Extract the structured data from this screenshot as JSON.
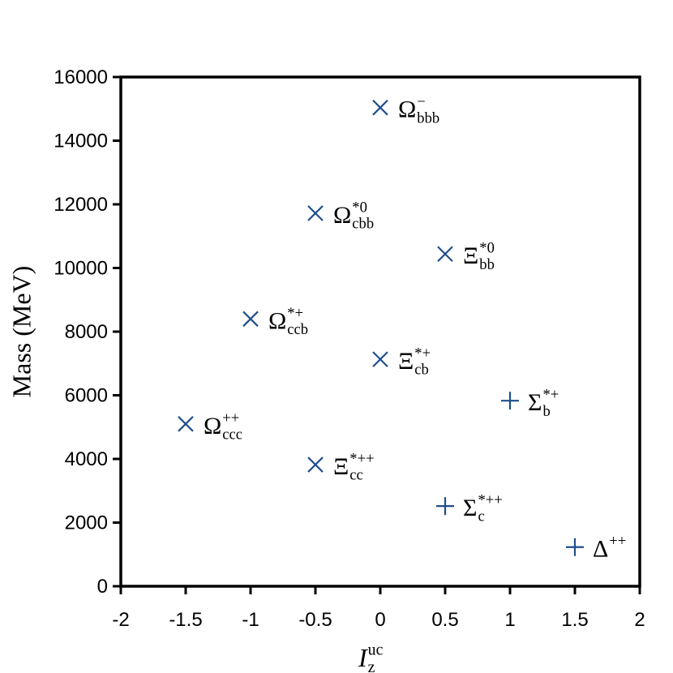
{
  "chart_data": {
    "type": "scatter",
    "xlabel": {
      "text": "I",
      "sub": "z",
      "sup": "uc"
    },
    "ylabel": "Mass (MeV)",
    "xlim": [
      -2,
      2
    ],
    "xticks": [
      -2,
      -1.5,
      -1,
      -0.5,
      0,
      0.5,
      1,
      1.5,
      2
    ],
    "ylim": [
      0,
      16000
    ],
    "yticks": [
      0,
      2000,
      4000,
      6000,
      8000,
      10000,
      12000,
      14000,
      16000
    ],
    "grid": false,
    "series": [
      {
        "marker": "x",
        "color": "#1f4e8c",
        "x": [
          0,
          -0.5,
          0.5,
          -1,
          0,
          -1.5,
          -0.5
        ],
        "values": [
          15040,
          11720,
          10440,
          8400,
          7130,
          5100,
          3820
        ],
        "labels": [
          {
            "symbol": "Ω",
            "sub": "bbb",
            "sup": "−"
          },
          {
            "symbol": "Ω",
            "sub": "cbb",
            "sup": "*0"
          },
          {
            "symbol": "Ξ",
            "sub": "bb",
            "sup": "*0"
          },
          {
            "symbol": "Ω",
            "sub": "ccb",
            "sup": "*+"
          },
          {
            "symbol": "Ξ",
            "sub": "cb",
            "sup": "*+"
          },
          {
            "symbol": "Ω",
            "sub": "ccc",
            "sup": "++"
          },
          {
            "symbol": "Ξ",
            "sub": "cc",
            "sup": "*++"
          }
        ]
      },
      {
        "marker": "+",
        "color": "#1f4e8c",
        "x": [
          1,
          0.5,
          1.5
        ],
        "values": [
          5830,
          2520,
          1230
        ],
        "labels": [
          {
            "symbol": "Σ",
            "sub": "b",
            "sup": "*+"
          },
          {
            "symbol": "Σ",
            "sub": "c",
            "sup": "*++"
          },
          {
            "symbol": "Δ",
            "sup": "++"
          }
        ]
      }
    ]
  }
}
